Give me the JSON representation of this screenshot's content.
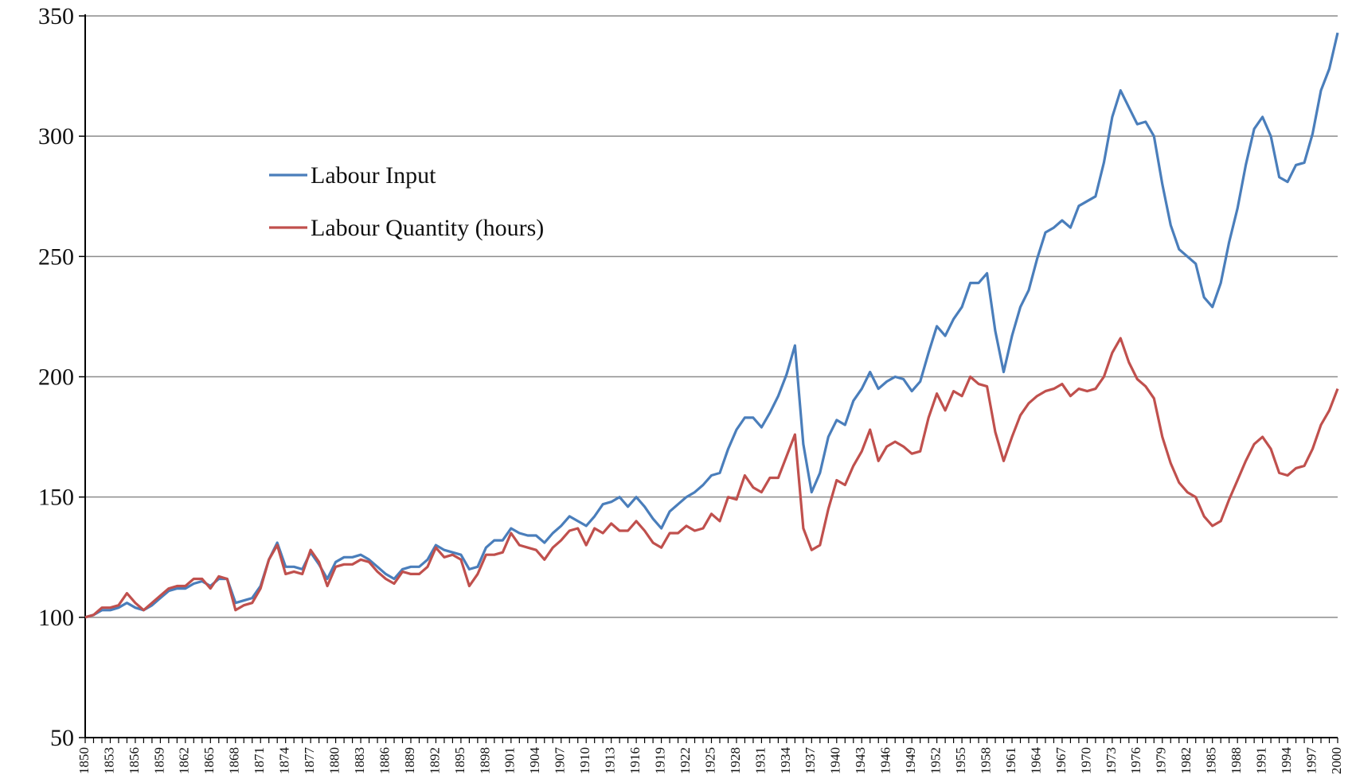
{
  "chart_data": {
    "type": "line",
    "title": "",
    "xlabel": "",
    "ylabel": "",
    "ylim": [
      50,
      350
    ],
    "yticks": [
      50,
      100,
      150,
      200,
      250,
      300,
      350
    ],
    "xlim": [
      1850,
      2000
    ],
    "xtick_labels": [
      "1850",
      "1853",
      "1856",
      "1859",
      "1862",
      "1865",
      "1868",
      "1871",
      "1874",
      "1877",
      "1880",
      "1883",
      "1886",
      "1889",
      "1892",
      "1895",
      "1898",
      "1901",
      "1904",
      "1907",
      "1910",
      "1913",
      "1916",
      "1919",
      "1922",
      "1925",
      "1928",
      "1931",
      "1934",
      "1937",
      "1940",
      "1943",
      "1946",
      "1949",
      "1952",
      "1955",
      "1958",
      "1961",
      "1964",
      "1967",
      "1970",
      "1973",
      "1976",
      "1979",
      "1982",
      "1985",
      "1988",
      "1991",
      "1994",
      "1997",
      "2000"
    ],
    "grid": true,
    "legend_position": "upper-left",
    "series": [
      {
        "name": "Labour Input",
        "color": "#4a7ebb",
        "points": [
          [
            1850,
            100
          ],
          [
            1851,
            101
          ],
          [
            1852,
            103
          ],
          [
            1853,
            103
          ],
          [
            1854,
            104
          ],
          [
            1855,
            106
          ],
          [
            1856,
            104
          ],
          [
            1857,
            103
          ],
          [
            1858,
            105
          ],
          [
            1859,
            108
          ],
          [
            1860,
            111
          ],
          [
            1861,
            112
          ],
          [
            1862,
            112
          ],
          [
            1863,
            114
          ],
          [
            1864,
            115
          ],
          [
            1865,
            113
          ],
          [
            1866,
            116
          ],
          [
            1867,
            116
          ],
          [
            1868,
            106
          ],
          [
            1869,
            107
          ],
          [
            1870,
            108
          ],
          [
            1871,
            113
          ],
          [
            1872,
            124
          ],
          [
            1873,
            131
          ],
          [
            1874,
            121
          ],
          [
            1875,
            121
          ],
          [
            1876,
            120
          ],
          [
            1877,
            127
          ],
          [
            1878,
            122
          ],
          [
            1879,
            116
          ],
          [
            1880,
            123
          ],
          [
            1881,
            125
          ],
          [
            1882,
            125
          ],
          [
            1883,
            126
          ],
          [
            1884,
            124
          ],
          [
            1885,
            121
          ],
          [
            1886,
            118
          ],
          [
            1887,
            116
          ],
          [
            1888,
            120
          ],
          [
            1889,
            121
          ],
          [
            1890,
            121
          ],
          [
            1891,
            124
          ],
          [
            1892,
            130
          ],
          [
            1893,
            128
          ],
          [
            1894,
            127
          ],
          [
            1895,
            126
          ],
          [
            1896,
            120
          ],
          [
            1897,
            121
          ],
          [
            1898,
            129
          ],
          [
            1899,
            132
          ],
          [
            1900,
            132
          ],
          [
            1901,
            137
          ],
          [
            1902,
            135
          ],
          [
            1903,
            134
          ],
          [
            1904,
            134
          ],
          [
            1905,
            131
          ],
          [
            1906,
            135
          ],
          [
            1907,
            138
          ],
          [
            1908,
            142
          ],
          [
            1909,
            140
          ],
          [
            1910,
            138
          ],
          [
            1911,
            142
          ],
          [
            1912,
            147
          ],
          [
            1913,
            148
          ],
          [
            1914,
            150
          ],
          [
            1915,
            146
          ],
          [
            1916,
            150
          ],
          [
            1917,
            146
          ],
          [
            1918,
            141
          ],
          [
            1919,
            137
          ],
          [
            1920,
            144
          ],
          [
            1921,
            147
          ],
          [
            1922,
            150
          ],
          [
            1923,
            152
          ],
          [
            1924,
            155
          ],
          [
            1925,
            159
          ],
          [
            1926,
            160
          ],
          [
            1927,
            170
          ],
          [
            1928,
            178
          ],
          [
            1929,
            183
          ],
          [
            1930,
            183
          ],
          [
            1931,
            179
          ],
          [
            1932,
            185
          ],
          [
            1933,
            192
          ],
          [
            1934,
            201
          ],
          [
            1935,
            213
          ],
          [
            1936,
            172
          ],
          [
            1937,
            152
          ],
          [
            1938,
            160
          ],
          [
            1939,
            175
          ],
          [
            1940,
            182
          ],
          [
            1941,
            180
          ],
          [
            1942,
            190
          ],
          [
            1943,
            195
          ],
          [
            1944,
            202
          ],
          [
            1945,
            195
          ],
          [
            1946,
            198
          ],
          [
            1947,
            200
          ],
          [
            1948,
            199
          ],
          [
            1949,
            194
          ],
          [
            1950,
            198
          ],
          [
            1951,
            210
          ],
          [
            1952,
            221
          ],
          [
            1953,
            217
          ],
          [
            1954,
            224
          ],
          [
            1955,
            229
          ],
          [
            1956,
            239
          ],
          [
            1957,
            239
          ],
          [
            1958,
            243
          ],
          [
            1959,
            219
          ],
          [
            1960,
            202
          ],
          [
            1961,
            217
          ],
          [
            1962,
            229
          ],
          [
            1963,
            236
          ],
          [
            1964,
            249
          ],
          [
            1965,
            260
          ],
          [
            1966,
            262
          ],
          [
            1967,
            265
          ],
          [
            1968,
            262
          ],
          [
            1969,
            271
          ],
          [
            1970,
            273
          ],
          [
            1971,
            275
          ],
          [
            1972,
            289
          ],
          [
            1973,
            308
          ],
          [
            1974,
            319
          ],
          [
            1975,
            312
          ],
          [
            1976,
            305
          ],
          [
            1977,
            306
          ],
          [
            1978,
            300
          ],
          [
            1979,
            280
          ],
          [
            1980,
            263
          ],
          [
            1981,
            253
          ],
          [
            1982,
            250
          ],
          [
            1983,
            247
          ],
          [
            1984,
            233
          ],
          [
            1985,
            229
          ],
          [
            1986,
            239
          ],
          [
            1987,
            256
          ],
          [
            1988,
            270
          ],
          [
            1989,
            288
          ],
          [
            1990,
            303
          ],
          [
            1991,
            308
          ],
          [
            1992,
            300
          ],
          [
            1993,
            283
          ],
          [
            1994,
            281
          ],
          [
            1995,
            288
          ],
          [
            1996,
            289
          ],
          [
            1997,
            301
          ],
          [
            1998,
            319
          ],
          [
            1999,
            328
          ],
          [
            2000,
            343
          ]
        ]
      },
      {
        "name": "Labour Quantity (hours)",
        "color": "#c0504d",
        "points": [
          [
            1850,
            100
          ],
          [
            1851,
            101
          ],
          [
            1852,
            104
          ],
          [
            1853,
            104
          ],
          [
            1854,
            105
          ],
          [
            1855,
            110
          ],
          [
            1856,
            106
          ],
          [
            1857,
            103
          ],
          [
            1858,
            106
          ],
          [
            1859,
            109
          ],
          [
            1860,
            112
          ],
          [
            1861,
            113
          ],
          [
            1862,
            113
          ],
          [
            1863,
            116
          ],
          [
            1864,
            116
          ],
          [
            1865,
            112
          ],
          [
            1866,
            117
          ],
          [
            1867,
            116
          ],
          [
            1868,
            103
          ],
          [
            1869,
            105
          ],
          [
            1870,
            106
          ],
          [
            1871,
            112
          ],
          [
            1872,
            124
          ],
          [
            1873,
            130
          ],
          [
            1874,
            118
          ],
          [
            1875,
            119
          ],
          [
            1876,
            118
          ],
          [
            1877,
            128
          ],
          [
            1878,
            123
          ],
          [
            1879,
            113
          ],
          [
            1880,
            121
          ],
          [
            1881,
            122
          ],
          [
            1882,
            122
          ],
          [
            1883,
            124
          ],
          [
            1884,
            123
          ],
          [
            1885,
            119
          ],
          [
            1886,
            116
          ],
          [
            1887,
            114
          ],
          [
            1888,
            119
          ],
          [
            1889,
            118
          ],
          [
            1890,
            118
          ],
          [
            1891,
            121
          ],
          [
            1892,
            129
          ],
          [
            1893,
            125
          ],
          [
            1894,
            126
          ],
          [
            1895,
            124
          ],
          [
            1896,
            113
          ],
          [
            1897,
            118
          ],
          [
            1898,
            126
          ],
          [
            1899,
            126
          ],
          [
            1900,
            127
          ],
          [
            1901,
            135
          ],
          [
            1902,
            130
          ],
          [
            1903,
            129
          ],
          [
            1904,
            128
          ],
          [
            1905,
            124
          ],
          [
            1906,
            129
          ],
          [
            1907,
            132
          ],
          [
            1908,
            136
          ],
          [
            1909,
            137
          ],
          [
            1910,
            130
          ],
          [
            1911,
            137
          ],
          [
            1912,
            135
          ],
          [
            1913,
            139
          ],
          [
            1914,
            136
          ],
          [
            1915,
            136
          ],
          [
            1916,
            140
          ],
          [
            1917,
            136
          ],
          [
            1918,
            131
          ],
          [
            1919,
            129
          ],
          [
            1920,
            135
          ],
          [
            1921,
            135
          ],
          [
            1922,
            138
          ],
          [
            1923,
            136
          ],
          [
            1924,
            137
          ],
          [
            1925,
            143
          ],
          [
            1926,
            140
          ],
          [
            1927,
            150
          ],
          [
            1928,
            149
          ],
          [
            1929,
            159
          ],
          [
            1930,
            154
          ],
          [
            1931,
            152
          ],
          [
            1932,
            158
          ],
          [
            1933,
            158
          ],
          [
            1934,
            167
          ],
          [
            1935,
            176
          ],
          [
            1936,
            137
          ],
          [
            1937,
            128
          ],
          [
            1938,
            130
          ],
          [
            1939,
            145
          ],
          [
            1940,
            157
          ],
          [
            1941,
            155
          ],
          [
            1942,
            163
          ],
          [
            1943,
            169
          ],
          [
            1944,
            178
          ],
          [
            1945,
            165
          ],
          [
            1946,
            171
          ],
          [
            1947,
            173
          ],
          [
            1948,
            171
          ],
          [
            1949,
            168
          ],
          [
            1950,
            169
          ],
          [
            1951,
            183
          ],
          [
            1952,
            193
          ],
          [
            1953,
            186
          ],
          [
            1954,
            194
          ],
          [
            1955,
            192
          ],
          [
            1956,
            200
          ],
          [
            1957,
            197
          ],
          [
            1958,
            196
          ],
          [
            1959,
            177
          ],
          [
            1960,
            165
          ],
          [
            1961,
            175
          ],
          [
            1962,
            184
          ],
          [
            1963,
            189
          ],
          [
            1964,
            192
          ],
          [
            1965,
            194
          ],
          [
            1966,
            195
          ],
          [
            1967,
            197
          ],
          [
            1968,
            192
          ],
          [
            1969,
            195
          ],
          [
            1970,
            194
          ],
          [
            1971,
            195
          ],
          [
            1972,
            200
          ],
          [
            1973,
            210
          ],
          [
            1974,
            216
          ],
          [
            1975,
            206
          ],
          [
            1976,
            199
          ],
          [
            1977,
            196
          ],
          [
            1978,
            191
          ],
          [
            1979,
            175
          ],
          [
            1980,
            164
          ],
          [
            1981,
            156
          ],
          [
            1982,
            152
          ],
          [
            1983,
            150
          ],
          [
            1984,
            142
          ],
          [
            1985,
            138
          ],
          [
            1986,
            140
          ],
          [
            1987,
            149
          ],
          [
            1988,
            157
          ],
          [
            1989,
            165
          ],
          [
            1990,
            172
          ],
          [
            1991,
            175
          ],
          [
            1992,
            170
          ],
          [
            1993,
            160
          ],
          [
            1994,
            159
          ],
          [
            1995,
            162
          ],
          [
            1996,
            163
          ],
          [
            1997,
            170
          ],
          [
            1998,
            180
          ],
          [
            1999,
            186
          ],
          [
            2000,
            195
          ]
        ]
      }
    ]
  }
}
